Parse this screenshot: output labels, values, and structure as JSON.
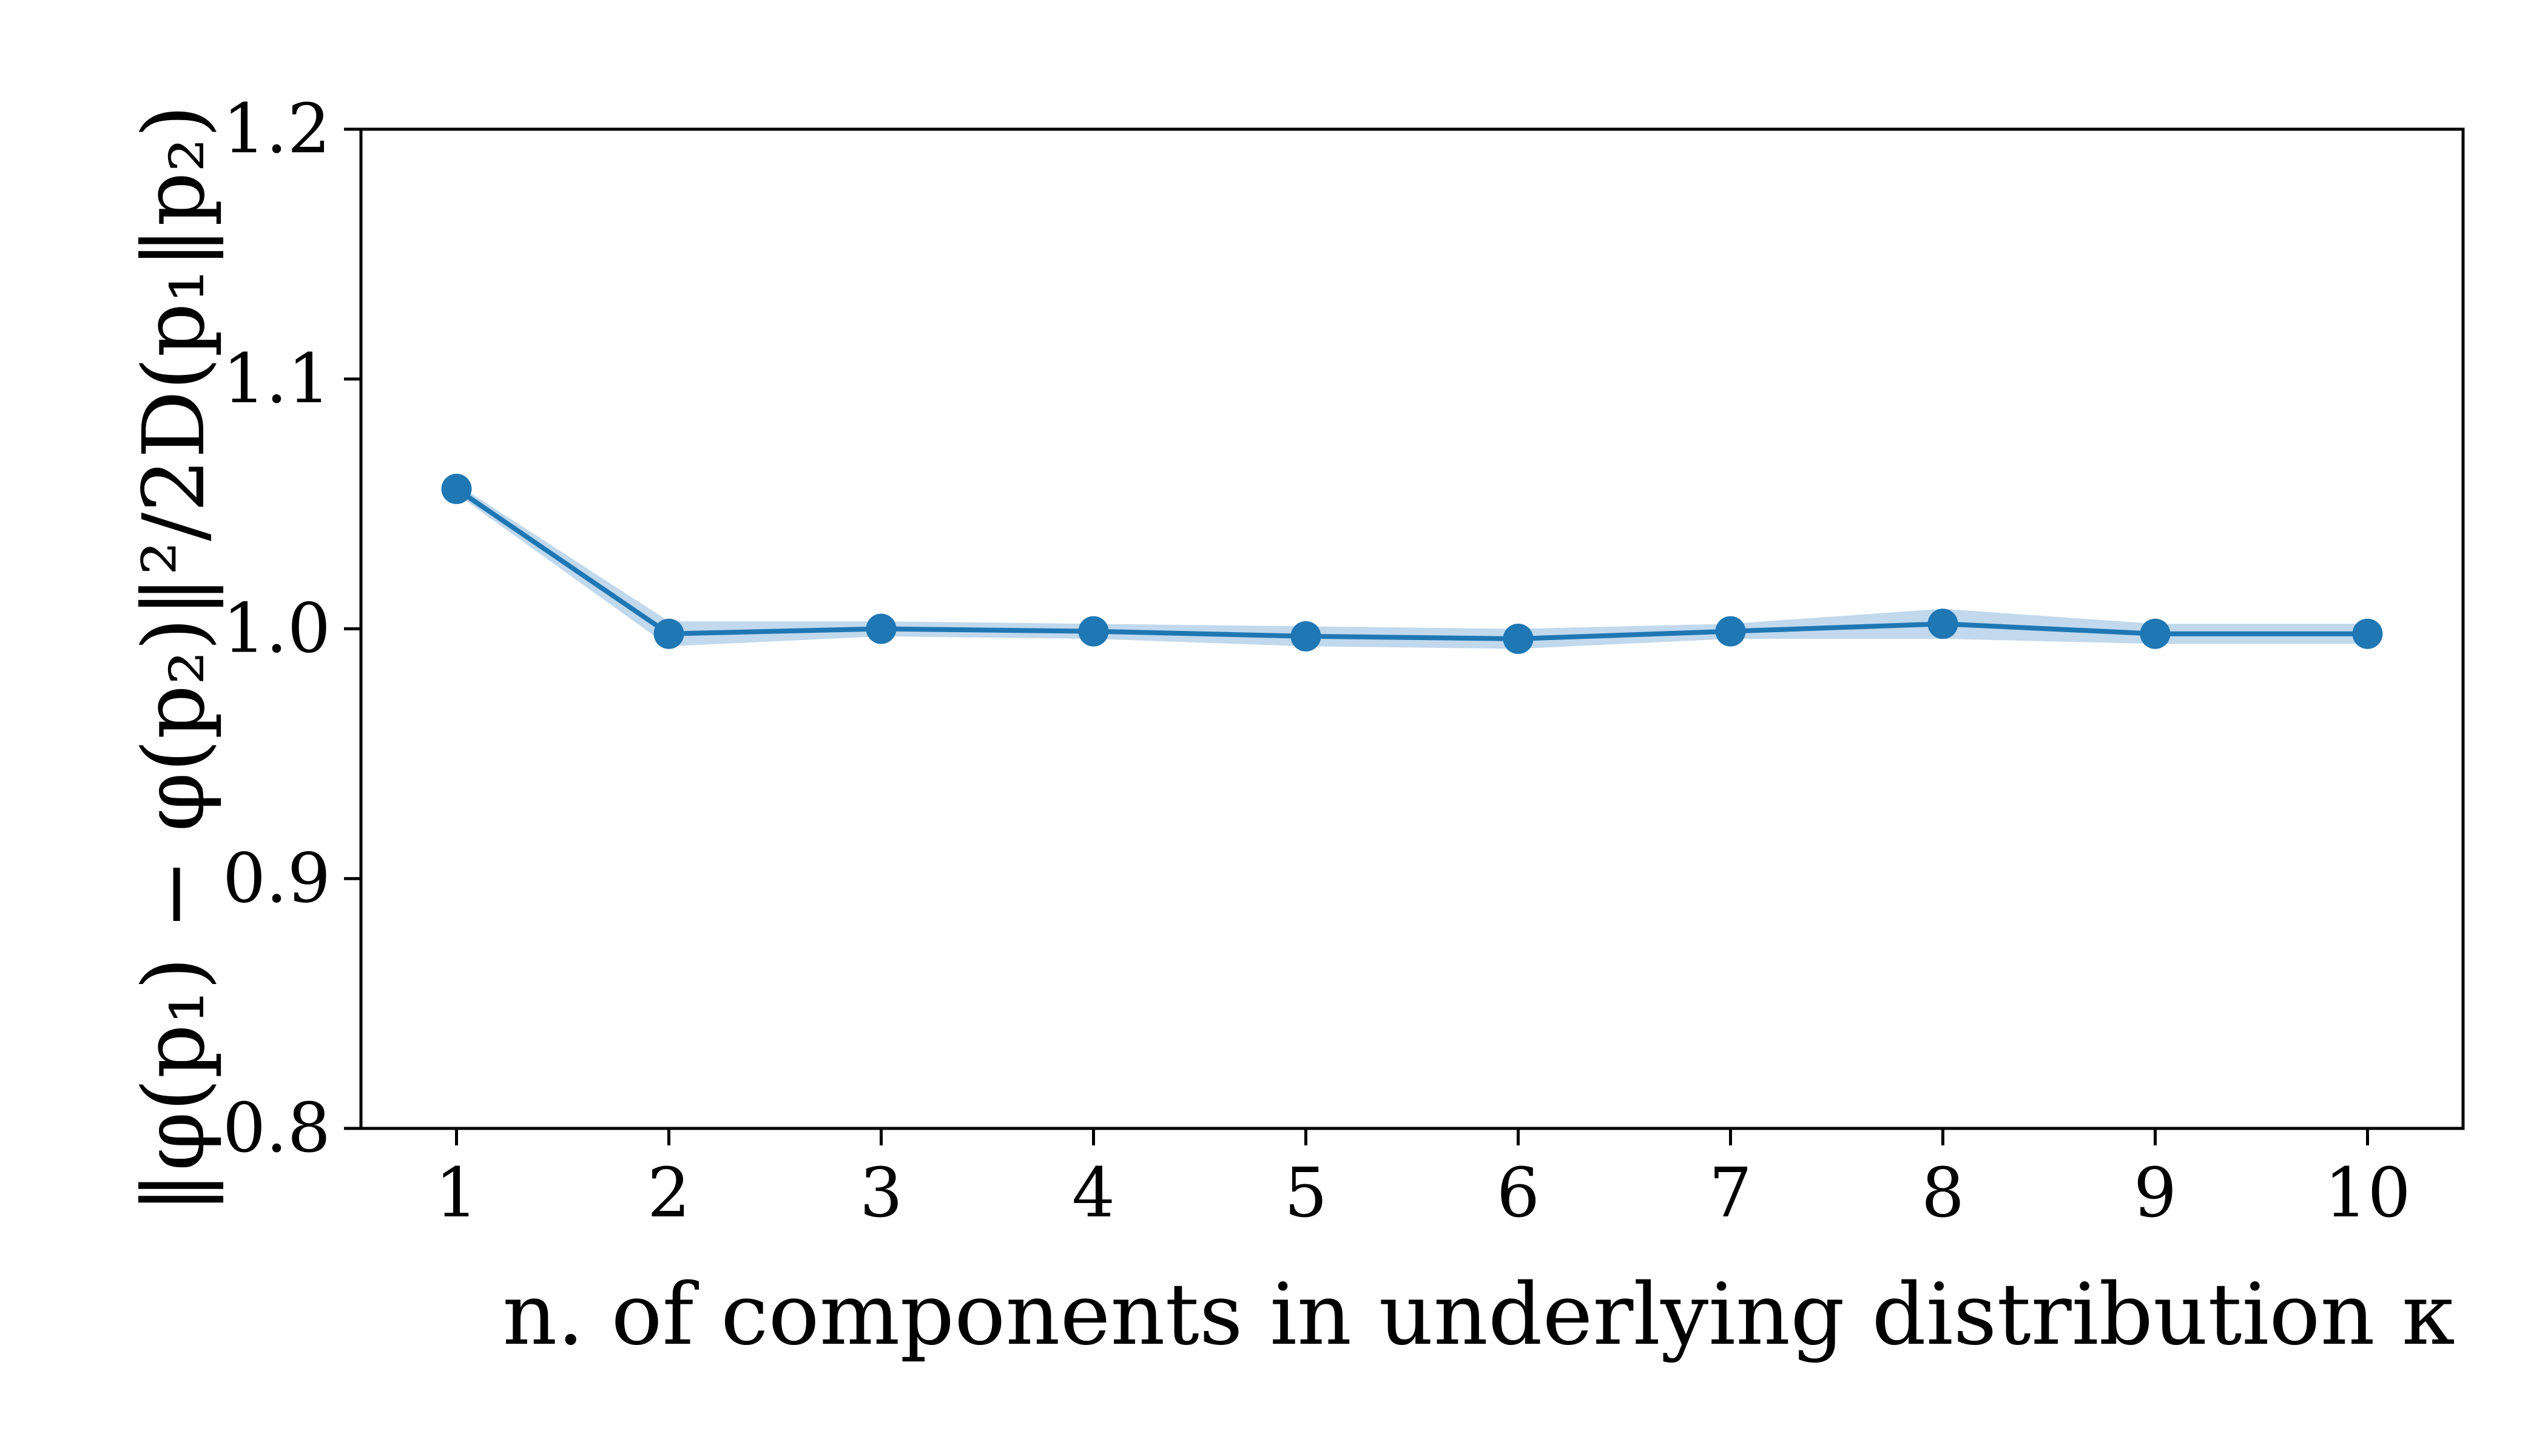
{
  "chart_data": {
    "type": "line",
    "title": "",
    "xlabel": "n. of components in underlying distribution κ",
    "ylabel": "‖φ(p₁) − φ(p₂)‖²/2D(p₁‖p₂)",
    "x": [
      1,
      2,
      3,
      4,
      5,
      6,
      7,
      8,
      9,
      10
    ],
    "xticks": [
      "1",
      "2",
      "3",
      "4",
      "5",
      "6",
      "7",
      "8",
      "9",
      "10"
    ],
    "xlim": [
      0.55,
      10.45
    ],
    "ylim": [
      0.8,
      1.2
    ],
    "yticks": [
      "0.8",
      "0.9",
      "1.0",
      "1.1",
      "1.2"
    ],
    "grid": false,
    "legend": "none",
    "series": [
      {
        "values": [
          1.056,
          0.998,
          1.0,
          0.999,
          0.997,
          0.996,
          0.999,
          1.002,
          0.998,
          0.998
        ],
        "band_lower": [
          1.054,
          0.993,
          0.997,
          0.996,
          0.993,
          0.992,
          0.996,
          0.996,
          0.994,
          0.994
        ],
        "band_upper": [
          1.058,
          1.003,
          1.003,
          1.002,
          1.001,
          1.0,
          1.002,
          1.008,
          1.002,
          1.002
        ],
        "color": "#1f77b4",
        "band_color": "#a6c8e6"
      }
    ]
  }
}
